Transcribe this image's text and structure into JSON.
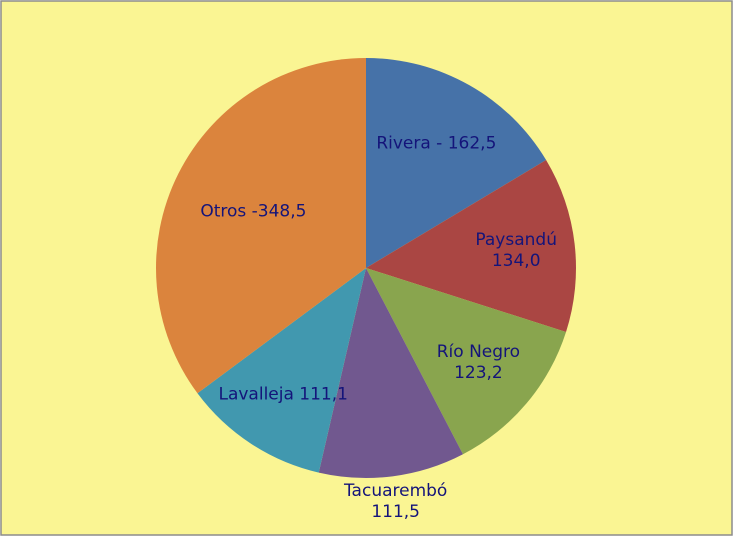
{
  "chart_data": {
    "type": "pie",
    "values": [
      162.5,
      134.0,
      123.2,
      111.5,
      111.1,
      348.5
    ],
    "value_labels": [
      [
        "Rivera - 162,5"
      ],
      [
        "Paysandú",
        "134,0"
      ],
      [
        "Río Negro",
        "123,2"
      ],
      [
        "Tacuarembó",
        "111,5"
      ],
      [
        "Lavalleja 111,1"
      ],
      [
        "Otros -348,5"
      ]
    ],
    "colors": [
      "#4672a8",
      "#aa4643",
      "#89a54e",
      "#71588f",
      "#4198af",
      "#db843d"
    ]
  }
}
